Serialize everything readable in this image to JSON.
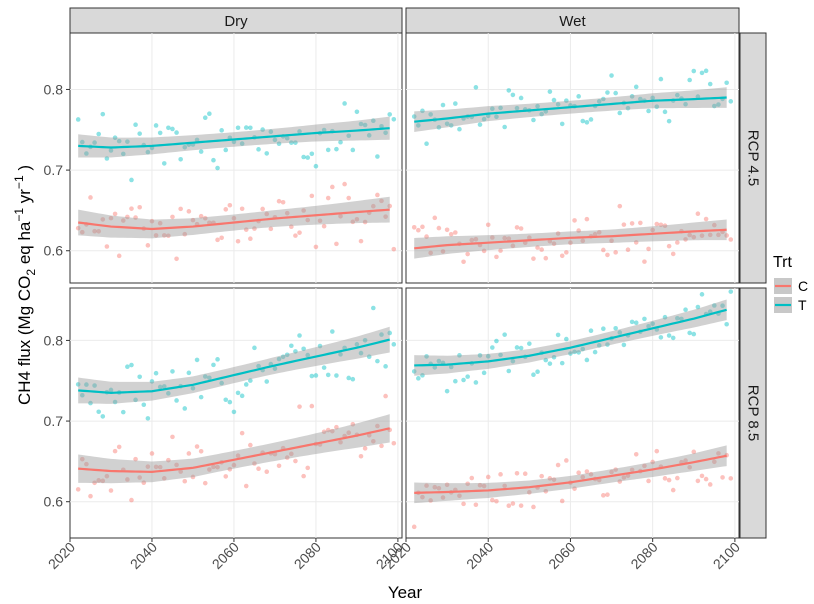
{
  "chart_data": {
    "type": "scatter",
    "xlabel": "Year",
    "ylabel": "CH4 flux (Mg CO",
    "ylabel_parts": {
      "pre": "CH4 flux (Mg CO",
      "sub2": "2",
      "mid": " eq ha",
      "sup1": "−1",
      "mid2": " yr",
      "sup2": "−1",
      "post": " )"
    },
    "x_ticks": [
      "2020",
      "2040",
      "2060",
      "2080",
      "2100"
    ],
    "xlim": [
      2020,
      2101
    ],
    "y_ticks": [
      "0.6",
      "0.7",
      "0.8"
    ],
    "facet_cols": [
      "Dry",
      "Wet"
    ],
    "facet_rows": [
      "RCP 4.5",
      "RCP 8.5"
    ],
    "legend": {
      "title": "Trt",
      "entries": [
        {
          "label": "C",
          "color": "#F8766D"
        },
        {
          "label": "T",
          "color": "#00BFC4"
        }
      ]
    },
    "panels": [
      {
        "col": "Dry",
        "row": "RCP 4.5",
        "ylim": [
          0.56,
          0.87
        ],
        "series": [
          {
            "name": "C",
            "trend": [
              [
                2022,
                0.635
              ],
              [
                2030,
                0.63
              ],
              [
                2040,
                0.627
              ],
              [
                2050,
                0.63
              ],
              [
                2060,
                0.635
              ],
              [
                2070,
                0.64
              ],
              [
                2080,
                0.644
              ],
              [
                2090,
                0.648
              ],
              [
                2098,
                0.651
              ]
            ],
            "band": 0.01,
            "noise": 0.018,
            "seed": 11
          },
          {
            "name": "T",
            "trend": [
              [
                2022,
                0.73
              ],
              [
                2030,
                0.728
              ],
              [
                2040,
                0.73
              ],
              [
                2050,
                0.734
              ],
              [
                2060,
                0.738
              ],
              [
                2070,
                0.742
              ],
              [
                2080,
                0.746
              ],
              [
                2090,
                0.749
              ],
              [
                2098,
                0.752
              ]
            ],
            "band": 0.009,
            "noise": 0.017,
            "seed": 23
          }
        ]
      },
      {
        "col": "Wet",
        "row": "RCP 4.5",
        "ylim": [
          0.56,
          0.87
        ],
        "series": [
          {
            "name": "C",
            "trend": [
              [
                2022,
                0.603
              ],
              [
                2030,
                0.607
              ],
              [
                2040,
                0.61
              ],
              [
                2050,
                0.613
              ],
              [
                2060,
                0.616
              ],
              [
                2070,
                0.618
              ],
              [
                2080,
                0.621
              ],
              [
                2090,
                0.624
              ],
              [
                2098,
                0.626
              ]
            ],
            "band": 0.008,
            "noise": 0.016,
            "seed": 37
          },
          {
            "name": "T",
            "trend": [
              [
                2022,
                0.76
              ],
              [
                2030,
                0.764
              ],
              [
                2040,
                0.77
              ],
              [
                2050,
                0.774
              ],
              [
                2060,
                0.778
              ],
              [
                2070,
                0.782
              ],
              [
                2080,
                0.786
              ],
              [
                2090,
                0.788
              ],
              [
                2098,
                0.79
              ]
            ],
            "band": 0.008,
            "noise": 0.016,
            "seed": 41
          }
        ]
      },
      {
        "col": "Dry",
        "row": "RCP 8.5",
        "ylim": [
          0.555,
          0.865
        ],
        "series": [
          {
            "name": "C",
            "trend": [
              [
                2022,
                0.641
              ],
              [
                2030,
                0.638
              ],
              [
                2040,
                0.637
              ],
              [
                2050,
                0.642
              ],
              [
                2060,
                0.652
              ],
              [
                2070,
                0.662
              ],
              [
                2080,
                0.672
              ],
              [
                2090,
                0.682
              ],
              [
                2098,
                0.691
              ]
            ],
            "band": 0.011,
            "noise": 0.02,
            "seed": 53
          },
          {
            "name": "T",
            "trend": [
              [
                2022,
                0.738
              ],
              [
                2030,
                0.735
              ],
              [
                2040,
                0.737
              ],
              [
                2050,
                0.745
              ],
              [
                2060,
                0.757
              ],
              [
                2070,
                0.769
              ],
              [
                2080,
                0.78
              ],
              [
                2090,
                0.791
              ],
              [
                2098,
                0.801
              ]
            ],
            "band": 0.01,
            "noise": 0.018,
            "seed": 67
          }
        ]
      },
      {
        "col": "Wet",
        "row": "RCP 8.5",
        "ylim": [
          0.555,
          0.865
        ],
        "series": [
          {
            "name": "C",
            "trend": [
              [
                2022,
                0.611
              ],
              [
                2030,
                0.612
              ],
              [
                2040,
                0.614
              ],
              [
                2050,
                0.618
              ],
              [
                2060,
                0.624
              ],
              [
                2070,
                0.632
              ],
              [
                2080,
                0.64
              ],
              [
                2090,
                0.649
              ],
              [
                2098,
                0.657
              ]
            ],
            "band": 0.008,
            "noise": 0.015,
            "seed": 71
          },
          {
            "name": "T",
            "trend": [
              [
                2022,
                0.769
              ],
              [
                2030,
                0.77
              ],
              [
                2040,
                0.774
              ],
              [
                2050,
                0.781
              ],
              [
                2060,
                0.791
              ],
              [
                2070,
                0.803
              ],
              [
                2080,
                0.815
              ],
              [
                2090,
                0.827
              ],
              [
                2098,
                0.838
              ]
            ],
            "band": 0.008,
            "noise": 0.015,
            "seed": 83
          }
        ]
      }
    ]
  }
}
